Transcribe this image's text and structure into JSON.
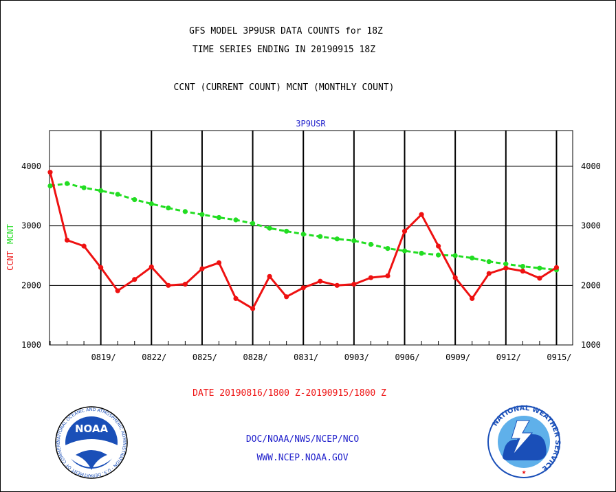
{
  "header": {
    "title_line1": "GFS MODEL 3P9USR DATA COUNTS for 18Z",
    "title_line2": "TIME SERIES ENDING IN 20190915 18Z",
    "subtitle": "CCNT (CURRENT COUNT) MCNT (MONTHLY COUNT)"
  },
  "footer": {
    "date_range": "DATE 20190816/1800 Z-20190915/1800 Z",
    "org_path": "DOC/NOAA/NWS/NCEP/NCO",
    "website": "WWW.NCEP.NOAA.GOV",
    "noaa_logo_text": "NOAA",
    "noaa_seal_ring_text": "NATIONAL OCEANIC AND ATMOSPHERIC ADMINISTRATION · U.S. DEPARTMENT OF COMMERCE",
    "nws_seal_ring_text": "NATIONAL WEATHER SERVICE"
  },
  "colors": {
    "ccnt": "#ee1111",
    "mcnt": "#22dd22",
    "series_title": "#2222cc",
    "date_text": "#ee1111",
    "footer_text": "#2222cc"
  },
  "chart_data": {
    "type": "line",
    "title": "3P9USR",
    "ylabel_left": [
      "CCNT",
      "MCNT"
    ],
    "ylim": [
      1000,
      4600
    ],
    "yticks": [
      1000,
      2000,
      3000,
      4000
    ],
    "grid": true,
    "x_tick_labels": [
      "0819/",
      "0822/",
      "0825/",
      "0828/",
      "0831/",
      "0903/",
      "0906/",
      "0909/",
      "0912/",
      "0915/"
    ],
    "x": [
      "0816",
      "0817",
      "0818",
      "0819",
      "0820",
      "0821",
      "0822",
      "0823",
      "0824",
      "0825",
      "0826",
      "0827",
      "0828",
      "0829",
      "0830",
      "0831",
      "0901",
      "0902",
      "0903",
      "0904",
      "0905",
      "0906",
      "0907",
      "0908",
      "0909",
      "0910",
      "0911",
      "0912",
      "0913",
      "0914",
      "0915"
    ],
    "series": [
      {
        "name": "CCNT",
        "values": [
          3900,
          2760,
          2660,
          2300,
          1910,
          2100,
          2310,
          2000,
          2020,
          2280,
          2380,
          1780,
          1610,
          2150,
          1810,
          1960,
          2070,
          2000,
          2020,
          2130,
          2160,
          2910,
          3190,
          2660,
          2130,
          1780,
          2200,
          2290,
          2240,
          2120,
          2300
        ]
      },
      {
        "name": "MCNT",
        "values": [
          3670,
          3710,
          3640,
          3590,
          3530,
          3440,
          3370,
          3300,
          3240,
          3190,
          3140,
          3100,
          3040,
          2960,
          2910,
          2860,
          2820,
          2780,
          2750,
          2690,
          2620,
          2580,
          2540,
          2510,
          2500,
          2460,
          2400,
          2360,
          2320,
          2290,
          2260
        ]
      }
    ]
  }
}
